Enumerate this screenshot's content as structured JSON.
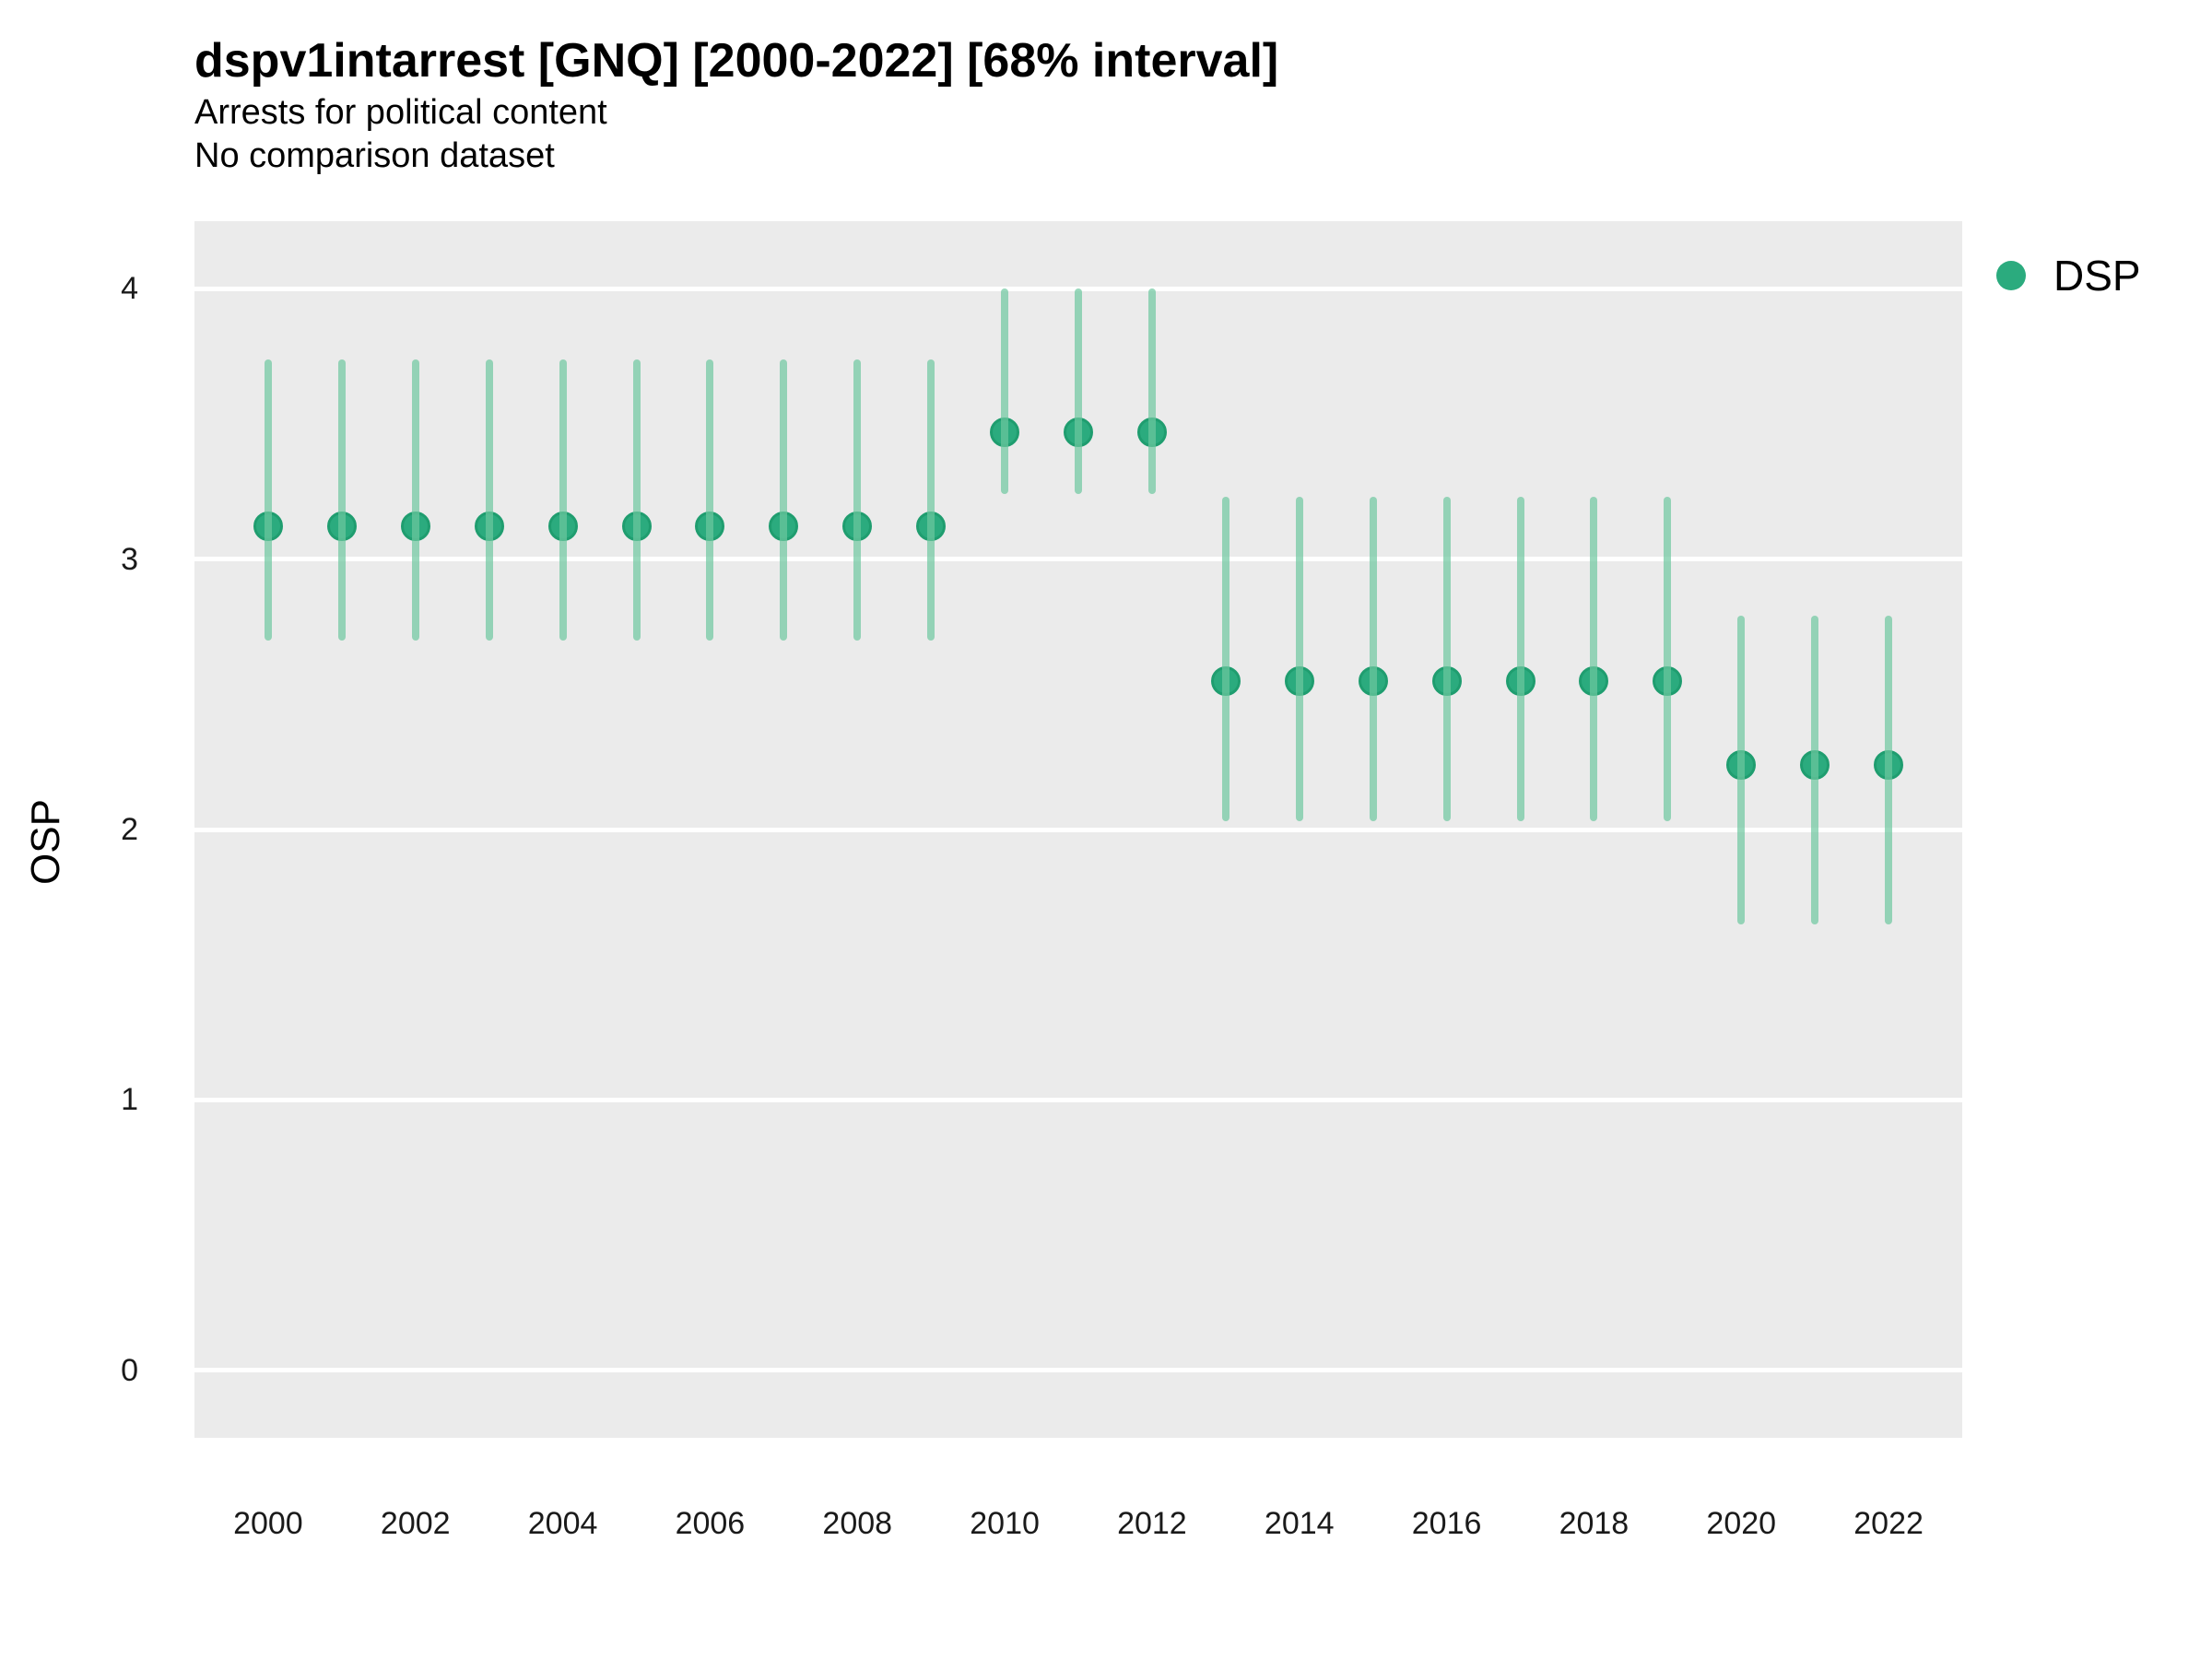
{
  "header": {
    "title": "dspv1intarrest [GNQ] [2000-2022] [68% interval]",
    "subtitle1": "Arrests for political content",
    "subtitle2": "No comparison dataset"
  },
  "legend": {
    "label": "DSP",
    "marker": "circle-icon",
    "color": "#2BAB7E"
  },
  "colors": {
    "panel_background": "#EBEBEB",
    "gridline": "#FFFFFF",
    "point_fill": "#2BAB7E",
    "point_border": "#1F9D6F",
    "errorbar": "rgba(110,200,160,0.7)"
  },
  "chart_data": {
    "type": "scatter",
    "title": "dspv1intarrest [GNQ] [2000-2022] [68% interval]",
    "subtitle": "Arrests for political content",
    "note": "No comparison dataset",
    "interval": "68%",
    "xlabel": "",
    "ylabel": "OSP",
    "xlim": [
      1999,
      2023
    ],
    "ylim": [
      -0.25,
      4.25
    ],
    "grid": "horizontal-major-only",
    "legend_position": "right-top",
    "x_ticks": [
      2000,
      2002,
      2004,
      2006,
      2008,
      2010,
      2012,
      2014,
      2016,
      2018,
      2020,
      2022
    ],
    "y_ticks": [
      4,
      3,
      2,
      1,
      0
    ],
    "series": [
      {
        "name": "DSP",
        "x": [
          2000,
          2001,
          2002,
          2003,
          2004,
          2005,
          2006,
          2007,
          2008,
          2009,
          2010,
          2011,
          2012,
          2013,
          2014,
          2015,
          2016,
          2017,
          2018,
          2019,
          2020,
          2021,
          2022
        ],
        "y": [
          3.12,
          3.12,
          3.12,
          3.12,
          3.12,
          3.12,
          3.12,
          3.12,
          3.12,
          3.12,
          3.47,
          3.47,
          3.47,
          2.55,
          2.55,
          2.55,
          2.55,
          2.55,
          2.55,
          2.55,
          2.24,
          2.24,
          2.24
        ],
        "y_lo": [
          2.7,
          2.7,
          2.7,
          2.7,
          2.7,
          2.7,
          2.7,
          2.7,
          2.7,
          2.7,
          3.24,
          3.24,
          3.24,
          2.03,
          2.03,
          2.03,
          2.03,
          2.03,
          2.03,
          2.03,
          1.65,
          1.65,
          1.65
        ],
        "y_hi": [
          3.74,
          3.74,
          3.74,
          3.74,
          3.74,
          3.74,
          3.74,
          3.74,
          3.74,
          3.74,
          4.0,
          4.0,
          4.0,
          3.23,
          3.23,
          3.23,
          3.23,
          3.23,
          3.23,
          3.23,
          2.79,
          2.79,
          2.79
        ]
      }
    ]
  }
}
